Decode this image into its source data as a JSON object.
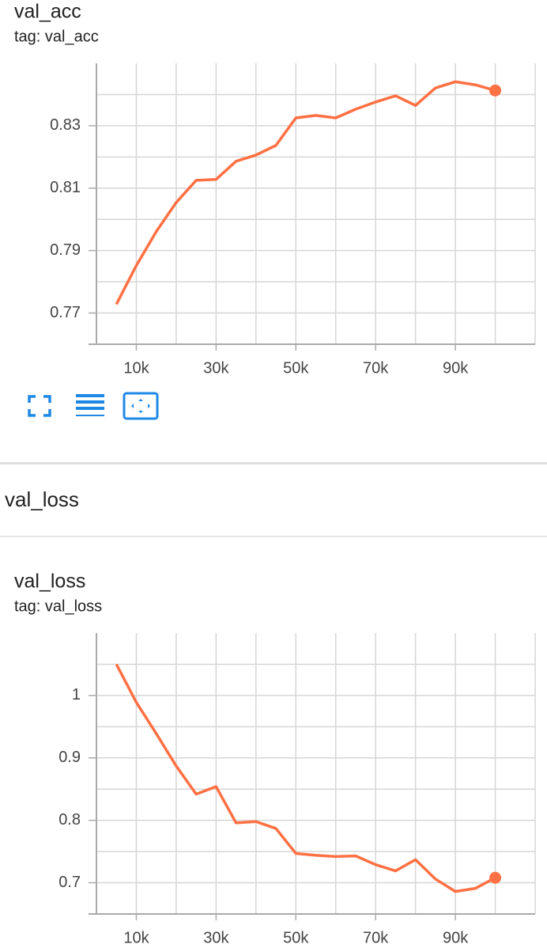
{
  "section_title": "val_loss",
  "chart_data": [
    {
      "type": "line",
      "title": "val_acc",
      "subtitle": "tag: val_acc",
      "color": "#ff7043",
      "grid": true,
      "x": [
        5000,
        10000,
        15000,
        20000,
        25000,
        30000,
        35000,
        40000,
        45000,
        50000,
        55000,
        60000,
        65000,
        70000,
        75000,
        80000,
        85000,
        90000,
        95000,
        100000
      ],
      "values": [
        0.7728,
        0.7852,
        0.7961,
        0.8054,
        0.8125,
        0.8128,
        0.8186,
        0.8206,
        0.8237,
        0.8325,
        0.8333,
        0.8325,
        0.8353,
        0.8376,
        0.8396,
        0.8365,
        0.8421,
        0.8441,
        0.8431,
        0.8413
      ],
      "xlim": [
        0,
        110000
      ],
      "xticks": [
        {
          "value": 10000,
          "label": "10k"
        },
        {
          "value": 30000,
          "label": "30k"
        },
        {
          "value": 50000,
          "label": "50k"
        },
        {
          "value": 70000,
          "label": "70k"
        },
        {
          "value": 90000,
          "label": "90k"
        }
      ],
      "x_minor_ticks": [
        20000,
        40000,
        60000,
        80000,
        100000,
        110000
      ],
      "ylim": [
        0.76,
        0.85
      ],
      "yticks": [
        0.77,
        0.79,
        0.81,
        0.83
      ],
      "y_minor_ticks": [
        0.78,
        0.8,
        0.82,
        0.84
      ]
    },
    {
      "type": "line",
      "title": "val_loss",
      "subtitle": "tag: val_loss",
      "color": "#ff7043",
      "grid": true,
      "x": [
        5000,
        10000,
        15000,
        20000,
        25000,
        30000,
        35000,
        40000,
        45000,
        50000,
        55000,
        60000,
        65000,
        70000,
        75000,
        80000,
        85000,
        90000,
        95000,
        100000
      ],
      "values": [
        1.05,
        0.989,
        0.939,
        0.887,
        0.842,
        0.854,
        0.796,
        0.798,
        0.787,
        0.747,
        0.744,
        0.742,
        0.743,
        0.729,
        0.719,
        0.737,
        0.706,
        0.686,
        0.691,
        0.708
      ],
      "xlim": [
        0,
        110000
      ],
      "xticks": [
        {
          "value": 10000,
          "label": "10k"
        },
        {
          "value": 30000,
          "label": "30k"
        },
        {
          "value": 50000,
          "label": "50k"
        },
        {
          "value": 70000,
          "label": "70k"
        },
        {
          "value": 90000,
          "label": "90k"
        }
      ],
      "x_minor_ticks": [
        20000,
        40000,
        60000,
        80000,
        100000,
        110000
      ],
      "ylim": [
        0.65,
        1.1
      ],
      "yticks": [
        0.7,
        0.8,
        0.9,
        1
      ],
      "y_minor_ticks": [
        0.75,
        0.85,
        0.95,
        1.05
      ]
    }
  ]
}
